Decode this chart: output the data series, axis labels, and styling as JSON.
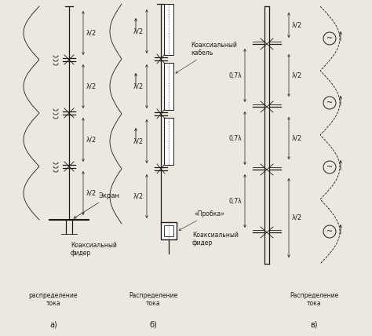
{
  "fig_width": 4.74,
  "fig_height": 4.28,
  "dpi": 100,
  "bg_color": "#ede8df",
  "lc": "#1a1a1a",
  "lhalf": "λ/2",
  "coax_feeder_a": "Коаксиальный\nфидер",
  "screen_a": "Экран",
  "cur_dist_a": "распределение\nтока",
  "label_a": "а)",
  "coax_cable_b": "Коаксиальный\nкабель",
  "plug_b": "«Пробка»",
  "coax_feeder_b": "Коаксиальный\nфидер",
  "cur_dist_b": "Распределение\nтока",
  "label_b": "б)",
  "lambda07_c": "0,7λ",
  "cur_dist_c": "Распределение\nтока",
  "label_c": "в)"
}
